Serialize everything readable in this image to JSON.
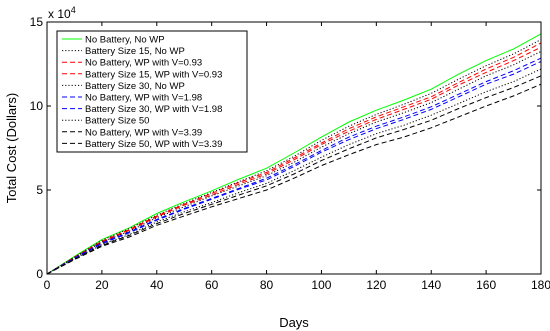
{
  "chart_data": {
    "type": "line",
    "xlabel": "Days",
    "ylabel": "Total Cost (Dollars)",
    "y_exponent_label": "x 10",
    "y_exponent_power": "4",
    "xlim": [
      0,
      180
    ],
    "ylim": [
      0,
      15
    ],
    "x_ticks": [
      "0",
      "20",
      "40",
      "60",
      "80",
      "100",
      "120",
      "140",
      "160",
      "180"
    ],
    "y_ticks": [
      "0",
      "5",
      "10",
      "15"
    ],
    "grid": false,
    "legend_position": "top-left",
    "x": [
      0,
      10,
      20,
      30,
      40,
      50,
      60,
      70,
      80,
      90,
      100,
      110,
      120,
      130,
      140,
      150,
      160,
      170,
      180
    ],
    "series": [
      {
        "name": "No Battery, No WP",
        "color": "#00ff00",
        "dash": "solid",
        "values": [
          0,
          1.05,
          2.05,
          2.75,
          3.6,
          4.3,
          4.95,
          5.65,
          6.3,
          7.2,
          8.15,
          9.05,
          9.75,
          10.35,
          11.0,
          11.9,
          12.7,
          13.4,
          14.3
        ]
      },
      {
        "name": "Battery Size 15, No WP",
        "color": "#000000",
        "dash": "dotted",
        "values": [
          0,
          1.0,
          2.0,
          2.7,
          3.5,
          4.2,
          4.85,
          5.5,
          6.15,
          7.0,
          7.95,
          8.8,
          9.5,
          10.1,
          10.75,
          11.6,
          12.4,
          13.1,
          13.95
        ]
      },
      {
        "name": "No Battery, WP with V=0.93",
        "color": "#ff0000",
        "dash": "dashed",
        "values": [
          0,
          1.0,
          1.95,
          2.65,
          3.45,
          4.15,
          4.8,
          5.45,
          6.05,
          6.9,
          7.8,
          8.65,
          9.35,
          9.95,
          10.55,
          11.4,
          12.2,
          12.9,
          13.75
        ]
      },
      {
        "name": "Battery Size 15, WP with V=0.93",
        "color": "#ff0000",
        "dash": "dashed",
        "values": [
          0,
          0.98,
          1.9,
          2.6,
          3.4,
          4.1,
          4.7,
          5.35,
          5.95,
          6.8,
          7.7,
          8.5,
          9.2,
          9.8,
          10.4,
          11.25,
          12.0,
          12.7,
          13.5
        ]
      },
      {
        "name": "Battery Size 30, No WP",
        "color": "#000000",
        "dash": "dotted",
        "values": [
          0,
          0.97,
          1.9,
          2.55,
          3.35,
          4.0,
          4.65,
          5.25,
          5.85,
          6.65,
          7.55,
          8.35,
          9.05,
          9.6,
          10.2,
          11.0,
          11.8,
          12.45,
          13.25
        ]
      },
      {
        "name": "No Battery, WP with V=1.98",
        "color": "#0000ff",
        "dash": "dashed",
        "values": [
          0,
          0.95,
          1.85,
          2.5,
          3.25,
          3.9,
          4.5,
          5.1,
          5.7,
          6.5,
          7.35,
          8.15,
          8.8,
          9.35,
          9.95,
          10.7,
          11.45,
          12.1,
          12.85
        ]
      },
      {
        "name": "Battery Size 30, WP with V=1.98",
        "color": "#0000ff",
        "dash": "dashed",
        "values": [
          0,
          0.93,
          1.8,
          2.45,
          3.2,
          3.85,
          4.45,
          5.05,
          5.6,
          6.4,
          7.25,
          8.0,
          8.65,
          9.2,
          9.8,
          10.55,
          11.3,
          11.9,
          12.65
        ]
      },
      {
        "name": "Battery Size 50",
        "color": "#000000",
        "dash": "dotted",
        "values": [
          0,
          0.9,
          1.75,
          2.35,
          3.1,
          3.7,
          4.25,
          4.85,
          5.4,
          6.15,
          6.95,
          7.7,
          8.35,
          8.85,
          9.45,
          10.15,
          10.85,
          11.45,
          12.2
        ]
      },
      {
        "name": "No Battery, WP with V=3.39",
        "color": "#000000",
        "dash": "dashed",
        "values": [
          0,
          0.88,
          1.7,
          2.3,
          3.0,
          3.6,
          4.15,
          4.7,
          5.25,
          5.95,
          6.75,
          7.45,
          8.1,
          8.6,
          9.15,
          9.85,
          10.5,
          11.1,
          11.8
        ]
      },
      {
        "name": "Battery Size 50, WP with V=3.39",
        "color": "#000000",
        "dash": "dashed",
        "values": [
          0,
          0.85,
          1.65,
          2.2,
          2.9,
          3.45,
          4.0,
          4.5,
          5.0,
          5.7,
          6.45,
          7.1,
          7.7,
          8.15,
          8.7,
          9.35,
          10.0,
          10.6,
          11.3
        ]
      }
    ]
  }
}
